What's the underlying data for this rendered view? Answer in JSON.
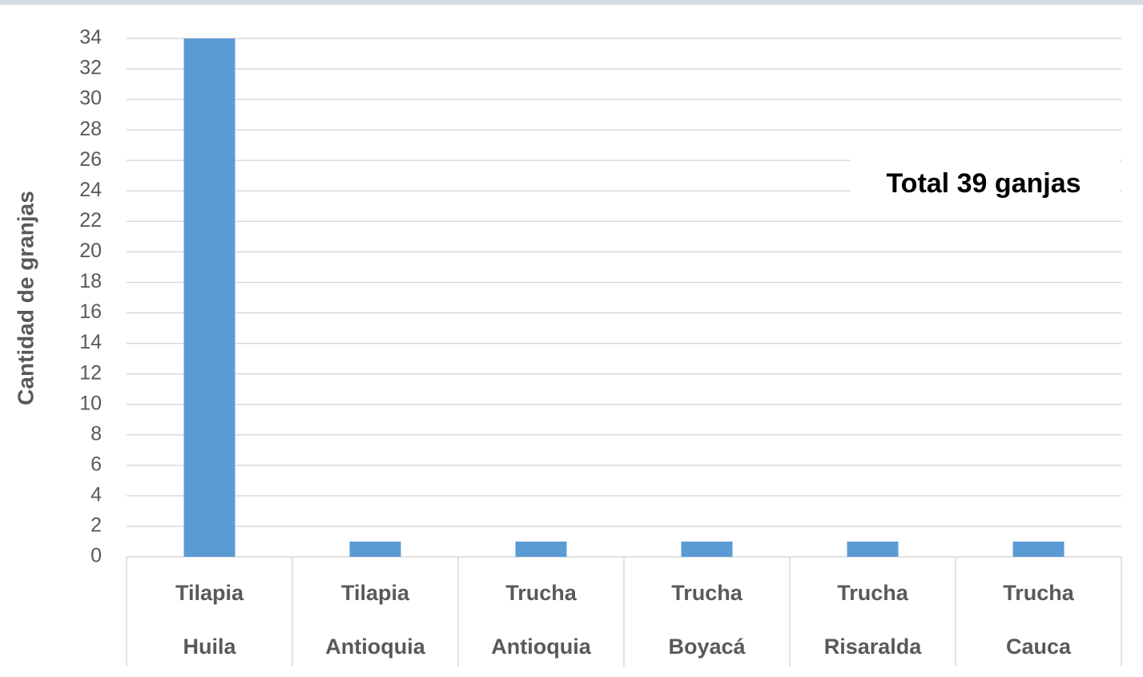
{
  "chart_data": {
    "type": "bar",
    "y_label": "Cantidad de granjas",
    "annotation": "Total 39 ganjas",
    "categories": [
      [
        "Tilapia",
        "Huila"
      ],
      [
        "Tilapia",
        "Antioquia"
      ],
      [
        "Trucha",
        "Antioquia"
      ],
      [
        "Trucha",
        "Boyacá"
      ],
      [
        "Trucha",
        "Risaralda"
      ],
      [
        "Trucha",
        "Cauca"
      ]
    ],
    "values": [
      34,
      1,
      1,
      1,
      1,
      1
    ],
    "color": "#5b9bd5",
    "ylim": [
      0,
      34
    ],
    "yticks": [
      0,
      2,
      4,
      6,
      8,
      10,
      12,
      14,
      16,
      18,
      20,
      22,
      24,
      26,
      28,
      30,
      32,
      34
    ],
    "grid": true
  }
}
